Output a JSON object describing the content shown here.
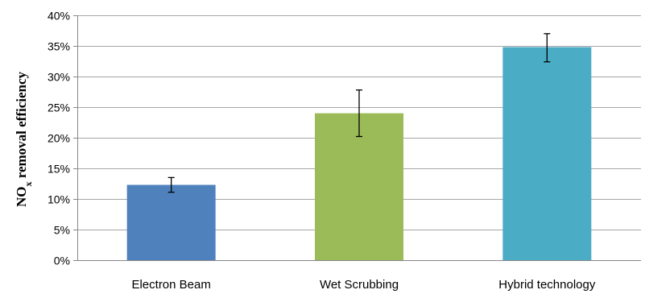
{
  "chart_data": {
    "type": "bar",
    "categories": [
      "Electron Beam",
      "Wet Scrubbing",
      "Hybrid technology"
    ],
    "values": [
      0.123,
      0.24,
      0.348
    ],
    "error_low": [
      0.111,
      0.202,
      0.324
    ],
    "error_high": [
      0.135,
      0.278,
      0.37
    ],
    "colors": [
      "#4f81bd",
      "#9bbb59",
      "#4bacc6"
    ],
    "ylabel": {
      "main": "NO",
      "subscript": "x",
      "rest": " removal efficiency"
    },
    "ylim": [
      0,
      0.4
    ],
    "yticks": [
      0,
      0.05,
      0.1,
      0.15,
      0.2,
      0.25,
      0.3,
      0.35,
      0.4
    ],
    "ytick_labels": [
      "0%",
      "5%",
      "10%",
      "15%",
      "20%",
      "25%",
      "30%",
      "35%",
      "40%"
    ],
    "grid": true,
    "legend": "none"
  }
}
